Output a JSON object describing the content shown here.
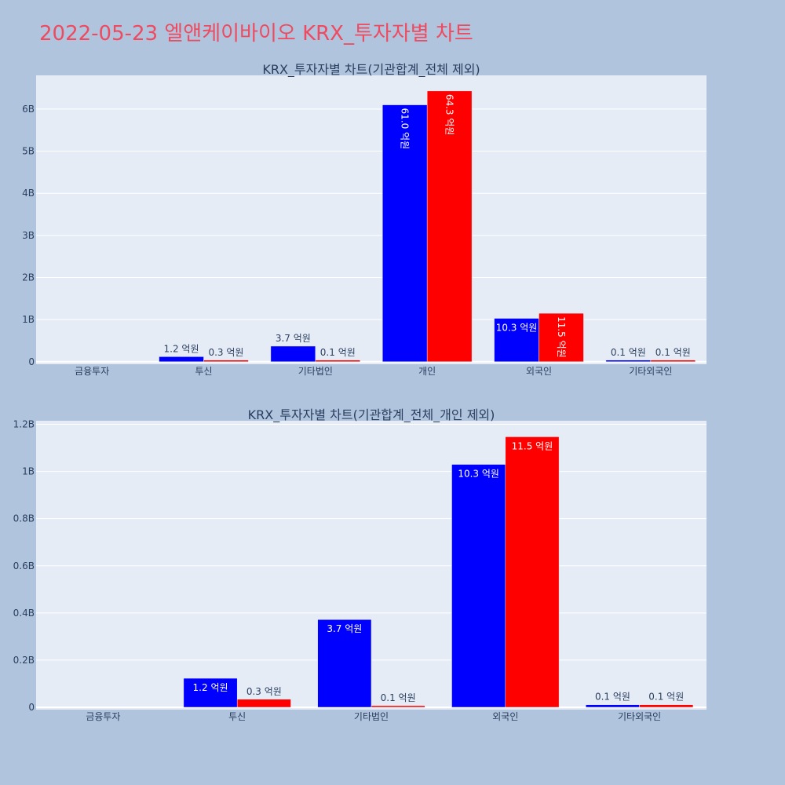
{
  "title": "2022-05-23 엘앤케이바이오 KRX_투자자별 차트",
  "colors": {
    "series_a": "#0000ff",
    "series_b": "#ff0000",
    "plot_bg": "#e5ecf6",
    "page_bg": "#b0c4de",
    "title": "#ef4a5f"
  },
  "chart_data": [
    {
      "type": "bar",
      "title": "KRX_투자자별 차트(기관합계_전체 제외)",
      "categories": [
        "금융투자",
        "투신",
        "기타법인",
        "개인",
        "외국인",
        "기타외국인"
      ],
      "series": [
        {
          "values": [
            0,
            0.12,
            0.37,
            6.1,
            1.03,
            0.01
          ],
          "labels": [
            "",
            "1.2 억원",
            "3.7 억원",
            "61.0 억원",
            "10.3 억원",
            "0.1 억원"
          ]
        },
        {
          "values": [
            0,
            0.03,
            0.01,
            6.43,
            1.15,
            0.01
          ],
          "labels": [
            "",
            "0.3 억원",
            "0.1 억원",
            "64.3 억원",
            "11.5 억원",
            "0.1 억원"
          ]
        }
      ],
      "yticks": [
        "0",
        "1B",
        "2B",
        "3B",
        "4B",
        "5B",
        "6B"
      ],
      "ylim": [
        -0.06,
        6.8
      ],
      "grid": true
    },
    {
      "type": "bar",
      "title": "KRX_투자자별 차트(기관합계_전체_개인 제외)",
      "categories": [
        "금융투자",
        "투신",
        "기타법인",
        "외국인",
        "기타외국인"
      ],
      "series": [
        {
          "values": [
            0,
            0.123,
            0.372,
            1.03,
            0.011
          ],
          "labels": [
            "",
            "1.2 억원",
            "3.7 억원",
            "10.3 억원",
            "0.1 억원"
          ]
        },
        {
          "values": [
            0,
            0.034,
            0.006,
            1.147,
            0.011
          ],
          "labels": [
            "",
            "0.3 억원",
            "0.1 억원",
            "11.5 억원",
            "0.1 억원"
          ]
        }
      ],
      "yticks": [
        "0",
        "0.2B",
        "0.4B",
        "0.6B",
        "0.8B",
        "1B",
        "1.2B"
      ],
      "ylim": [
        -0.01,
        1.215
      ],
      "grid": true
    }
  ]
}
